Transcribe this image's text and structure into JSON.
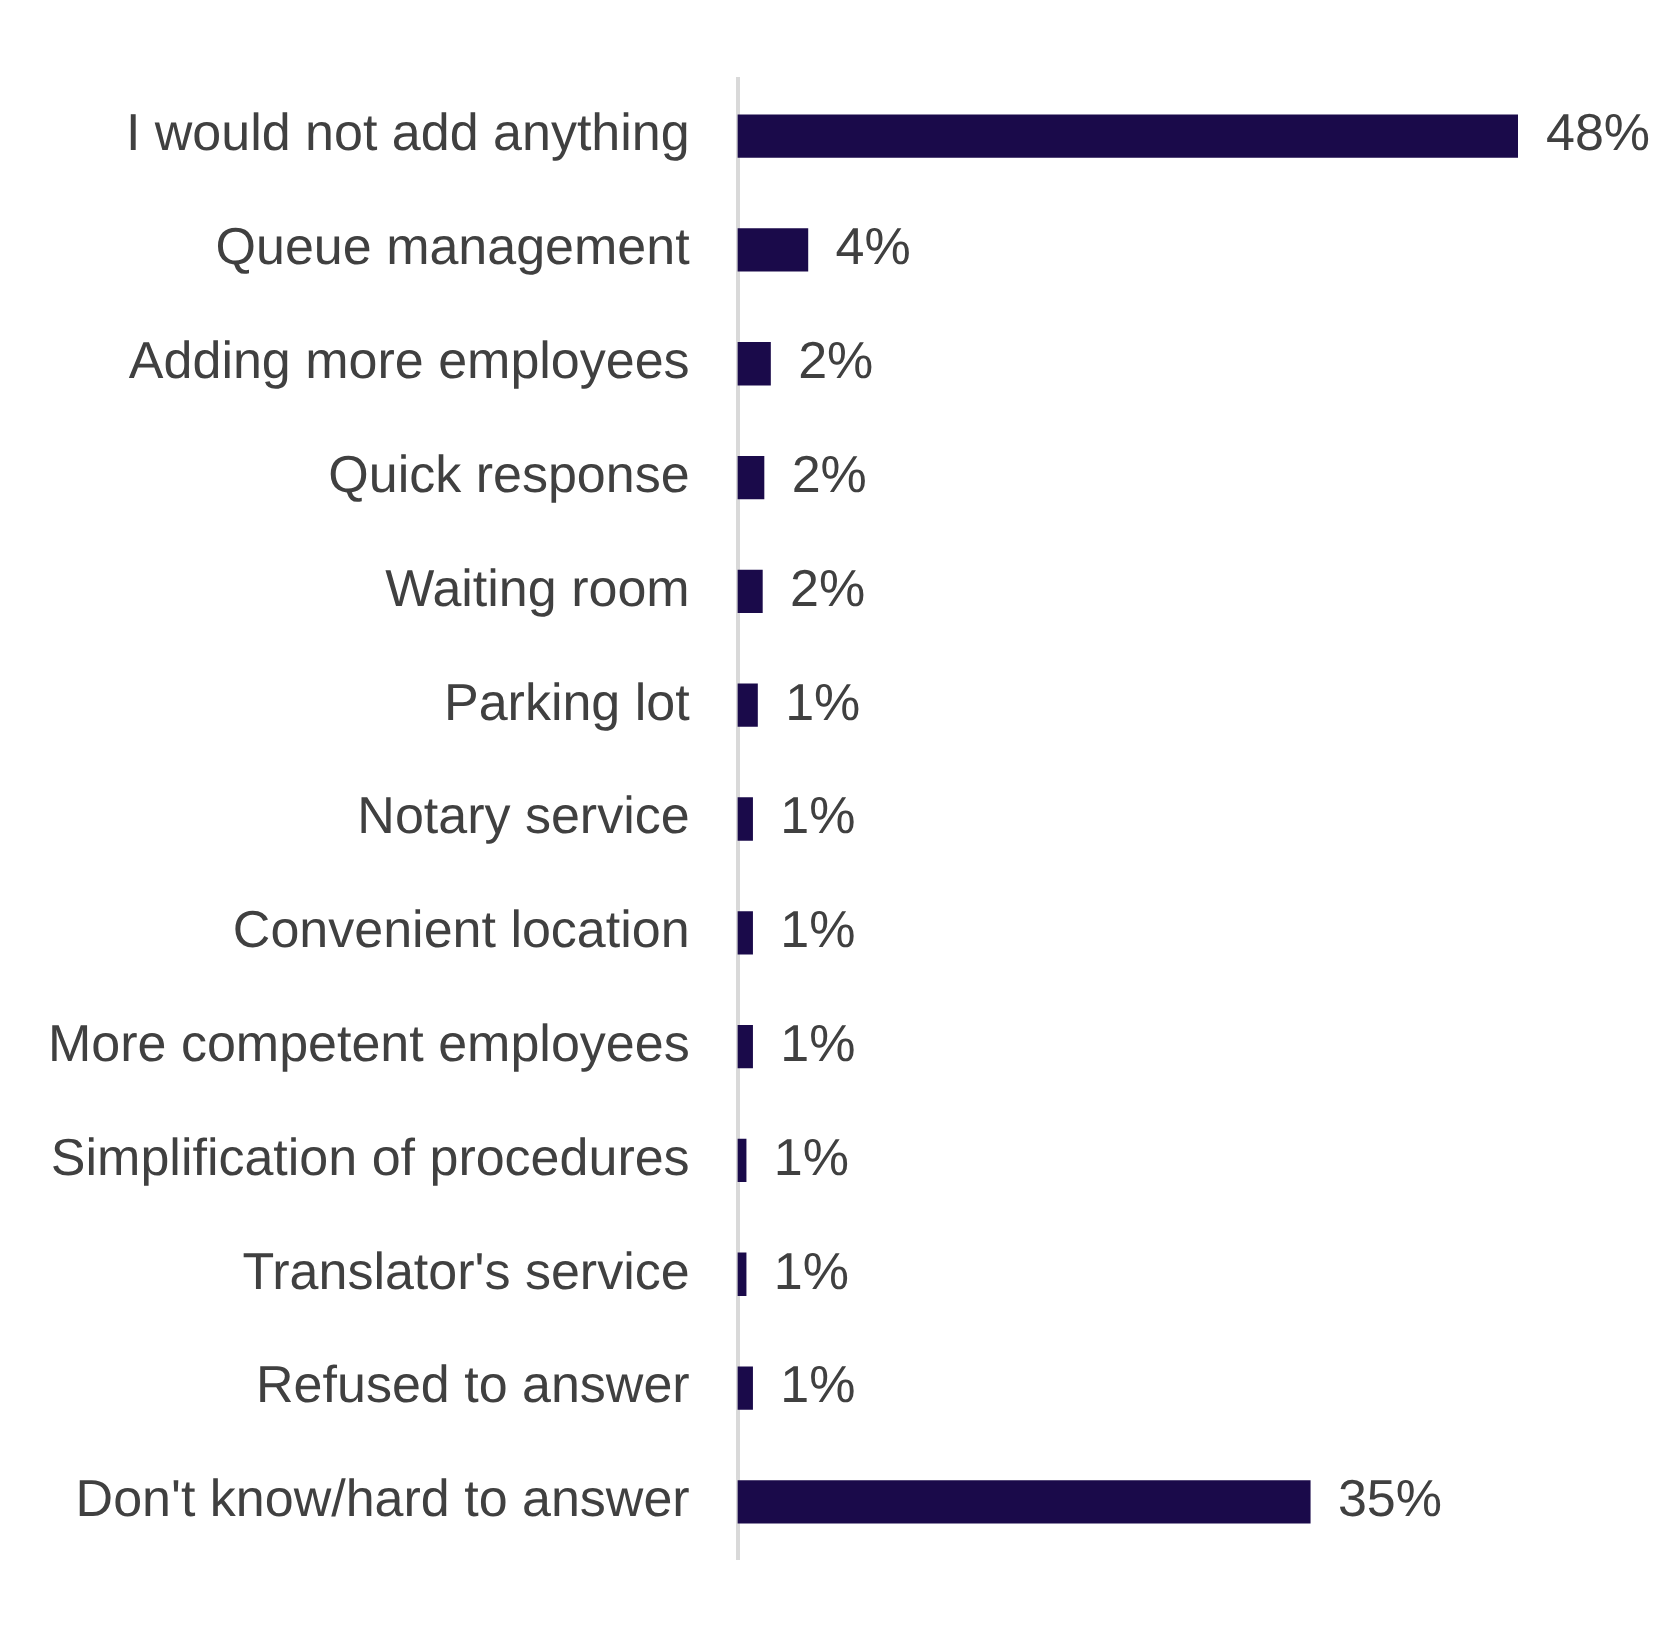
{
  "chart_data": {
    "type": "bar",
    "orientation": "horizontal",
    "categories": [
      "I would not add anything",
      "Queue management",
      "Adding more employees",
      "Quick response",
      "Waiting room",
      "Parking lot",
      "Notary service",
      "Convenient location",
      "More competent employees",
      "Simplification of procedures",
      "Translator's service",
      "Refused to answer",
      "Don't know/hard to answer"
    ],
    "values": [
      48,
      4.3,
      2,
      1.6,
      1.5,
      1.2,
      0.9,
      0.9,
      0.9,
      0.5,
      0.5,
      0.9,
      35.2
    ],
    "value_labels": [
      "48%",
      "4%",
      "2%",
      "2%",
      "2%",
      "1%",
      "1%",
      "1%",
      "1%",
      "1%",
      "1%",
      "1%",
      "35%"
    ],
    "color": "#1a0a4a",
    "xlim": [
      0,
      48
    ],
    "tick_labels": "y",
    "legend": false
  }
}
